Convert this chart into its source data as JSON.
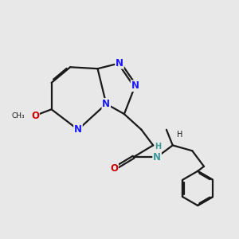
{
  "background_color": "#e8e8e8",
  "bond_color": "#1a1a1a",
  "n_color": "#1919ff",
  "o_color": "#cc0000",
  "nh_color": "#3a9a9a",
  "line_width": 1.6,
  "font_size_atom": 8.5,
  "font_size_small": 7.0,
  "xlim": [
    0,
    10
  ],
  "ylim": [
    0,
    10
  ]
}
